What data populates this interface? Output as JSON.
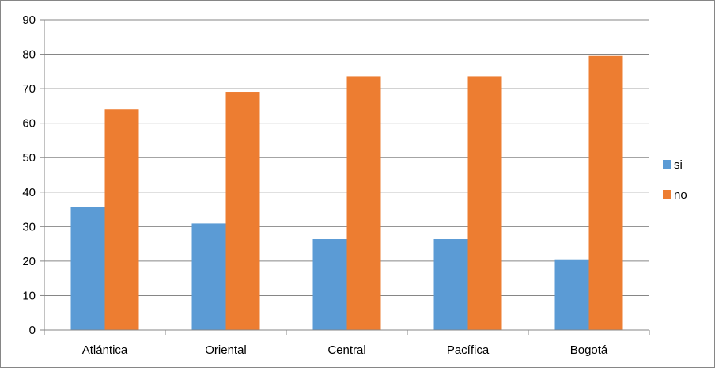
{
  "chart_data": {
    "type": "bar",
    "categories": [
      "Atlántica",
      "Oriental",
      "Central",
      "Pacífica",
      "Bogotá"
    ],
    "series": [
      {
        "name": "si",
        "color": "#5B9BD5",
        "values": [
          35.8,
          30.9,
          26.4,
          26.4,
          20.5
        ]
      },
      {
        "name": "no",
        "color": "#ED7D31",
        "values": [
          64.0,
          69.1,
          73.6,
          73.6,
          79.5
        ]
      }
    ],
    "title": "",
    "xlabel": "",
    "ylabel": "",
    "ylim": [
      0,
      90
    ],
    "yticks": [
      "0",
      "10",
      "20",
      "30",
      "40",
      "50",
      "60",
      "70",
      "80",
      "90"
    ],
    "grid": true,
    "legend_position": "right"
  }
}
